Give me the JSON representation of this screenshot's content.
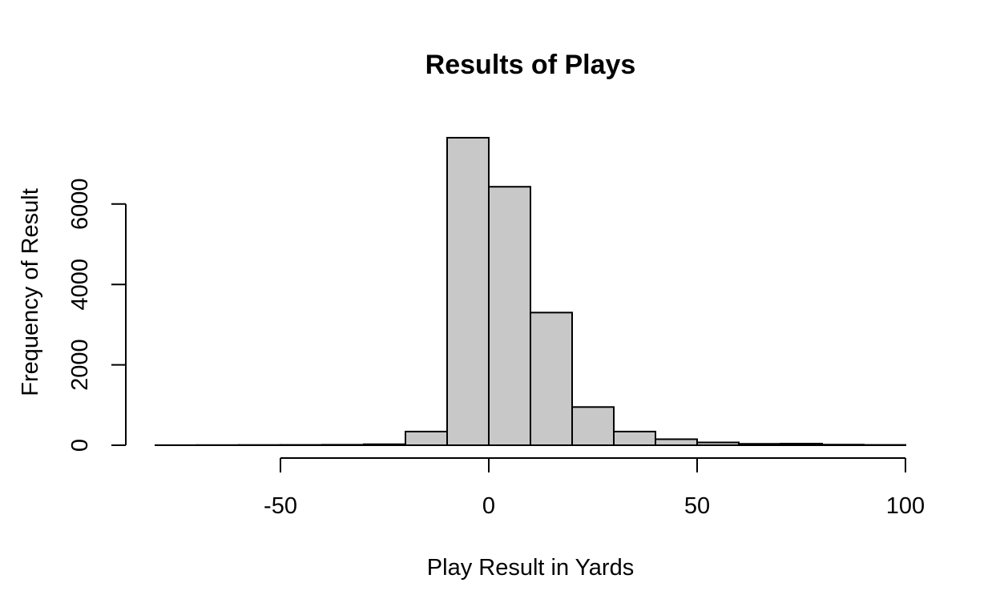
{
  "chart_data": {
    "type": "bar",
    "title": "Results of Plays",
    "xlabel": "Play Result in Yards",
    "ylabel": "Frequency of Result",
    "bin_width": 10,
    "bins": [
      {
        "start": -80,
        "end": -70,
        "count": 2
      },
      {
        "start": -70,
        "end": -60,
        "count": 4
      },
      {
        "start": -60,
        "end": -50,
        "count": 6
      },
      {
        "start": -50,
        "end": -40,
        "count": 8
      },
      {
        "start": -40,
        "end": -30,
        "count": 12
      },
      {
        "start": -30,
        "end": -20,
        "count": 25
      },
      {
        "start": -20,
        "end": -10,
        "count": 340
      },
      {
        "start": -10,
        "end": 0,
        "count": 7650
      },
      {
        "start": 0,
        "end": 10,
        "count": 6430
      },
      {
        "start": 10,
        "end": 20,
        "count": 3300
      },
      {
        "start": 20,
        "end": 30,
        "count": 950
      },
      {
        "start": 30,
        "end": 40,
        "count": 340
      },
      {
        "start": 40,
        "end": 50,
        "count": 150
      },
      {
        "start": 50,
        "end": 60,
        "count": 70
      },
      {
        "start": 60,
        "end": 70,
        "count": 35
      },
      {
        "start": 70,
        "end": 80,
        "count": 40
      },
      {
        "start": 80,
        "end": 90,
        "count": 15
      },
      {
        "start": 90,
        "end": 100,
        "count": 8
      }
    ],
    "x_ticks": [
      -50,
      0,
      50,
      100
    ],
    "y_ticks": [
      0,
      2000,
      4000,
      6000
    ],
    "x_tick_labels": [
      "-50",
      "0",
      "50",
      "100"
    ],
    "y_tick_labels": [
      "0",
      "2000",
      "4000",
      "6000"
    ],
    "xlim": [
      -80,
      100
    ],
    "ylim": [
      0,
      7650
    ],
    "bar_color": "#c8c8c8",
    "grid": false
  }
}
